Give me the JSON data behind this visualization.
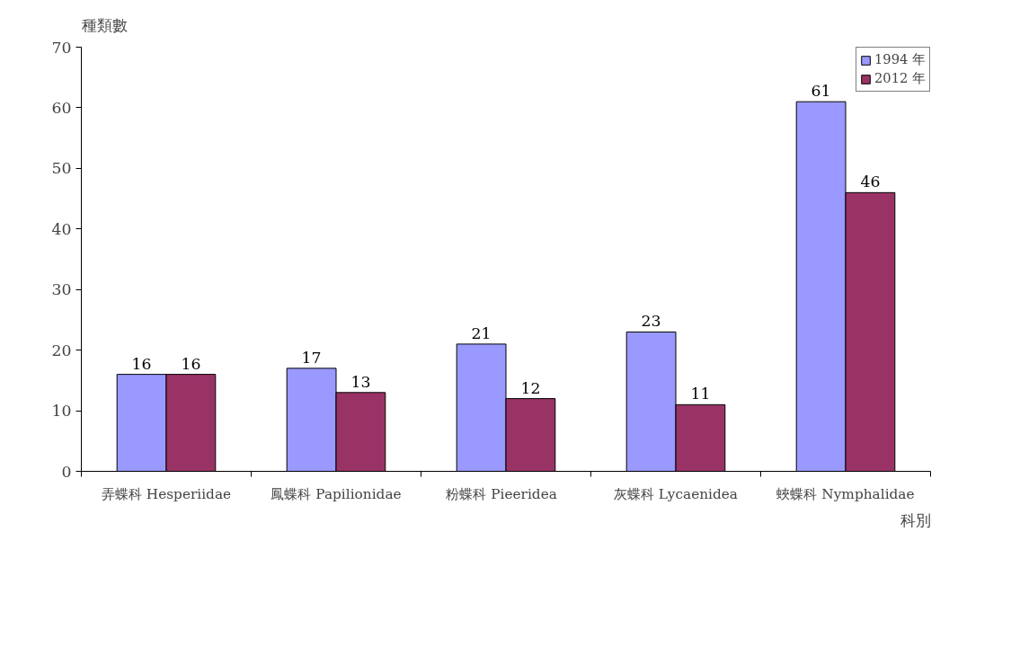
{
  "chart_data": {
    "type": "bar",
    "ylabel": "種類數",
    "xlabel": "科別",
    "categories": [
      "弄蝶科 Hesperiidae",
      "鳳蝶科 Papilionidae",
      "粉蝶科   Pieeridea",
      "灰蝶科 Lycaenidea",
      "蛺蝶科 Nymphalidae"
    ],
    "series": [
      {
        "name": "1994 年",
        "color": "#9999ff",
        "values": [
          16,
          17,
          21,
          23,
          61
        ]
      },
      {
        "name": "2012 年",
        "color": "#993366",
        "values": [
          16,
          13,
          12,
          11,
          46
        ]
      }
    ],
    "ylim": [
      0,
      70
    ],
    "yticks": [
      0,
      10,
      20,
      30,
      40,
      50,
      60,
      70
    ],
    "data_labels": true,
    "grid": false,
    "legend": "top right"
  }
}
